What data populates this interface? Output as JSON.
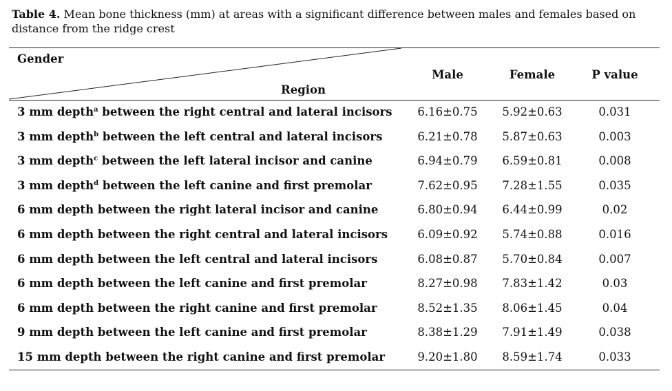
{
  "caption": {
    "label": "Table 4.",
    "text": " Mean bone thickness (mm) at areas with a significant difference between males and females based on distance from the ridge crest"
  },
  "header": {
    "gender": "Gender",
    "region": "Region",
    "male": "Male",
    "female": "Female",
    "p_value": "P value"
  },
  "rows": [
    {
      "pre": "3 mm depth",
      "sup": "a",
      "post": " between the right central and lateral incisors",
      "male": "6.16±0.75",
      "female": "5.92±0.63",
      "p": "0.031"
    },
    {
      "pre": "3 mm depth",
      "sup": "b",
      "post": " between the left central and lateral incisors",
      "male": "6.21±0.78",
      "female": "5.87±0.63",
      "p": "0.003"
    },
    {
      "pre": "3 mm depth",
      "sup": "c",
      "post": " between the left lateral incisor and canine",
      "male": "6.94±0.79",
      "female": "6.59±0.81",
      "p": "0.008"
    },
    {
      "pre": "3 mm depth",
      "sup": "d",
      "post": " between the left canine and first premolar",
      "male": "7.62±0.95",
      "female": "7.28±1.55",
      "p": "0.035"
    },
    {
      "pre": "6 mm depth between the right lateral incisor and canine",
      "sup": "",
      "post": "",
      "male": "6.80±0.94",
      "female": "6.44±0.99",
      "p": "0.02"
    },
    {
      "pre": "6 mm depth between the right central and lateral incisors",
      "sup": "",
      "post": "",
      "male": "6.09±0.92",
      "female": "5.74±0.88",
      "p": "0.016"
    },
    {
      "pre": "6 mm depth between the left central and lateral incisors",
      "sup": "",
      "post": "",
      "male": "6.08±0.87",
      "female": "5.70±0.84",
      "p": "0.007"
    },
    {
      "pre": "6 mm depth between the left canine and first premolar",
      "sup": "",
      "post": "",
      "male": "8.27±0.98",
      "female": "7.83±1.42",
      "p": "0.03"
    },
    {
      "pre": "6 mm depth between the right canine and first premolar",
      "sup": "",
      "post": "",
      "male": "8.52±1.35",
      "female": "8.06±1.45",
      "p": "0.04"
    },
    {
      "pre": "9 mm depth between the left canine and first premolar",
      "sup": "",
      "post": "",
      "male": "8.38±1.29",
      "female": "7.91±1.49",
      "p": "0.038"
    },
    {
      "pre": "15 mm depth between the right canine and first premolar",
      "sup": "",
      "post": "",
      "male": "9.20±1.80",
      "female": "8.59±1.74",
      "p": "0.033"
    }
  ]
}
